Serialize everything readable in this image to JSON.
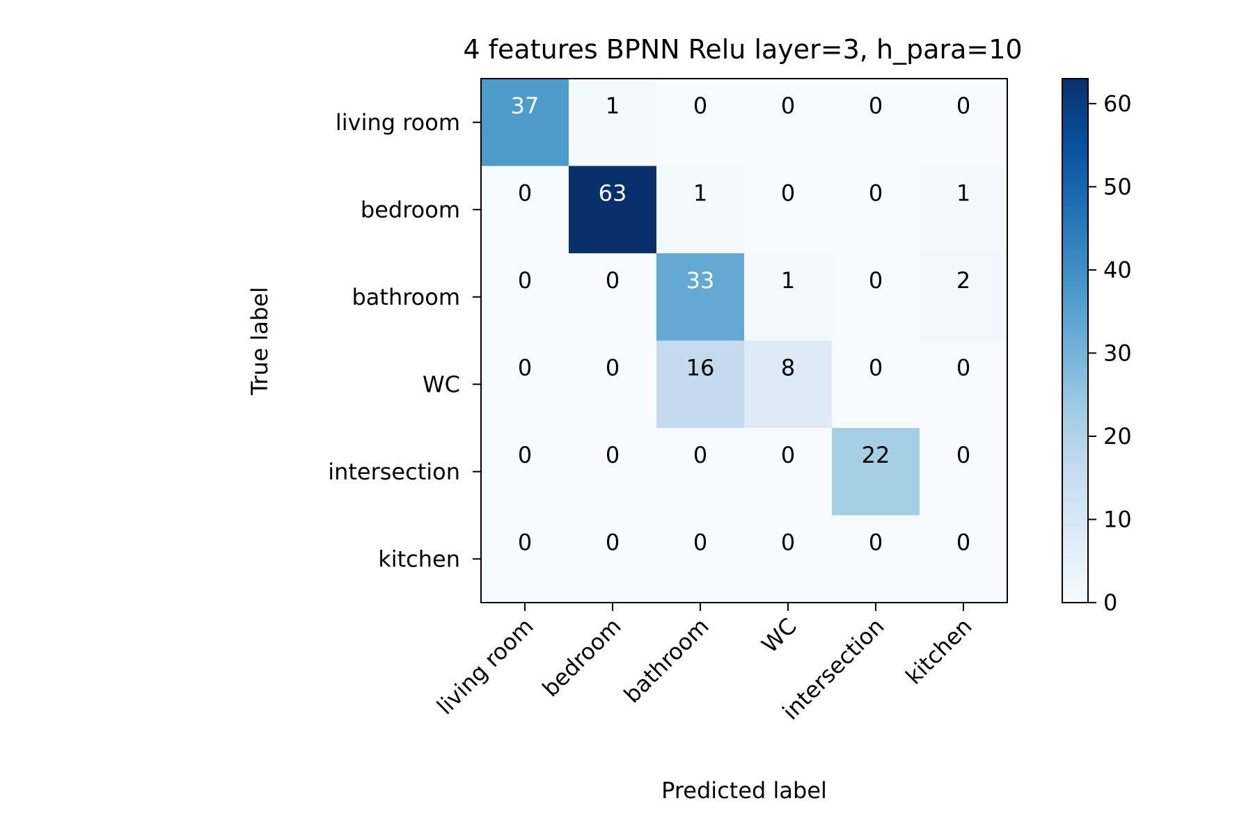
{
  "chart_data": {
    "type": "heatmap",
    "title": "4 features BPNN Relu layer=3, h_para=10",
    "xlabel": "Predicted label",
    "ylabel": "True label",
    "x_categories": [
      "living room",
      "bedroom",
      "bathroom",
      "WC",
      "intersection",
      "kitchen"
    ],
    "y_categories": [
      "living room",
      "bedroom",
      "bathroom",
      "WC",
      "intersection",
      "kitchen"
    ],
    "matrix": [
      [
        37,
        1,
        0,
        0,
        0,
        0
      ],
      [
        0,
        63,
        1,
        0,
        0,
        1
      ],
      [
        0,
        0,
        33,
        1,
        0,
        2
      ],
      [
        0,
        0,
        16,
        8,
        0,
        0
      ],
      [
        0,
        0,
        0,
        0,
        22,
        0
      ],
      [
        0,
        0,
        0,
        0,
        0,
        0
      ]
    ],
    "colormap": "Blues",
    "colorbar": {
      "min": 0,
      "max": 63,
      "ticks": [
        0,
        10,
        20,
        30,
        40,
        50,
        60
      ]
    },
    "text_color_light": "#ffffff",
    "text_color_dark": "#000000"
  }
}
